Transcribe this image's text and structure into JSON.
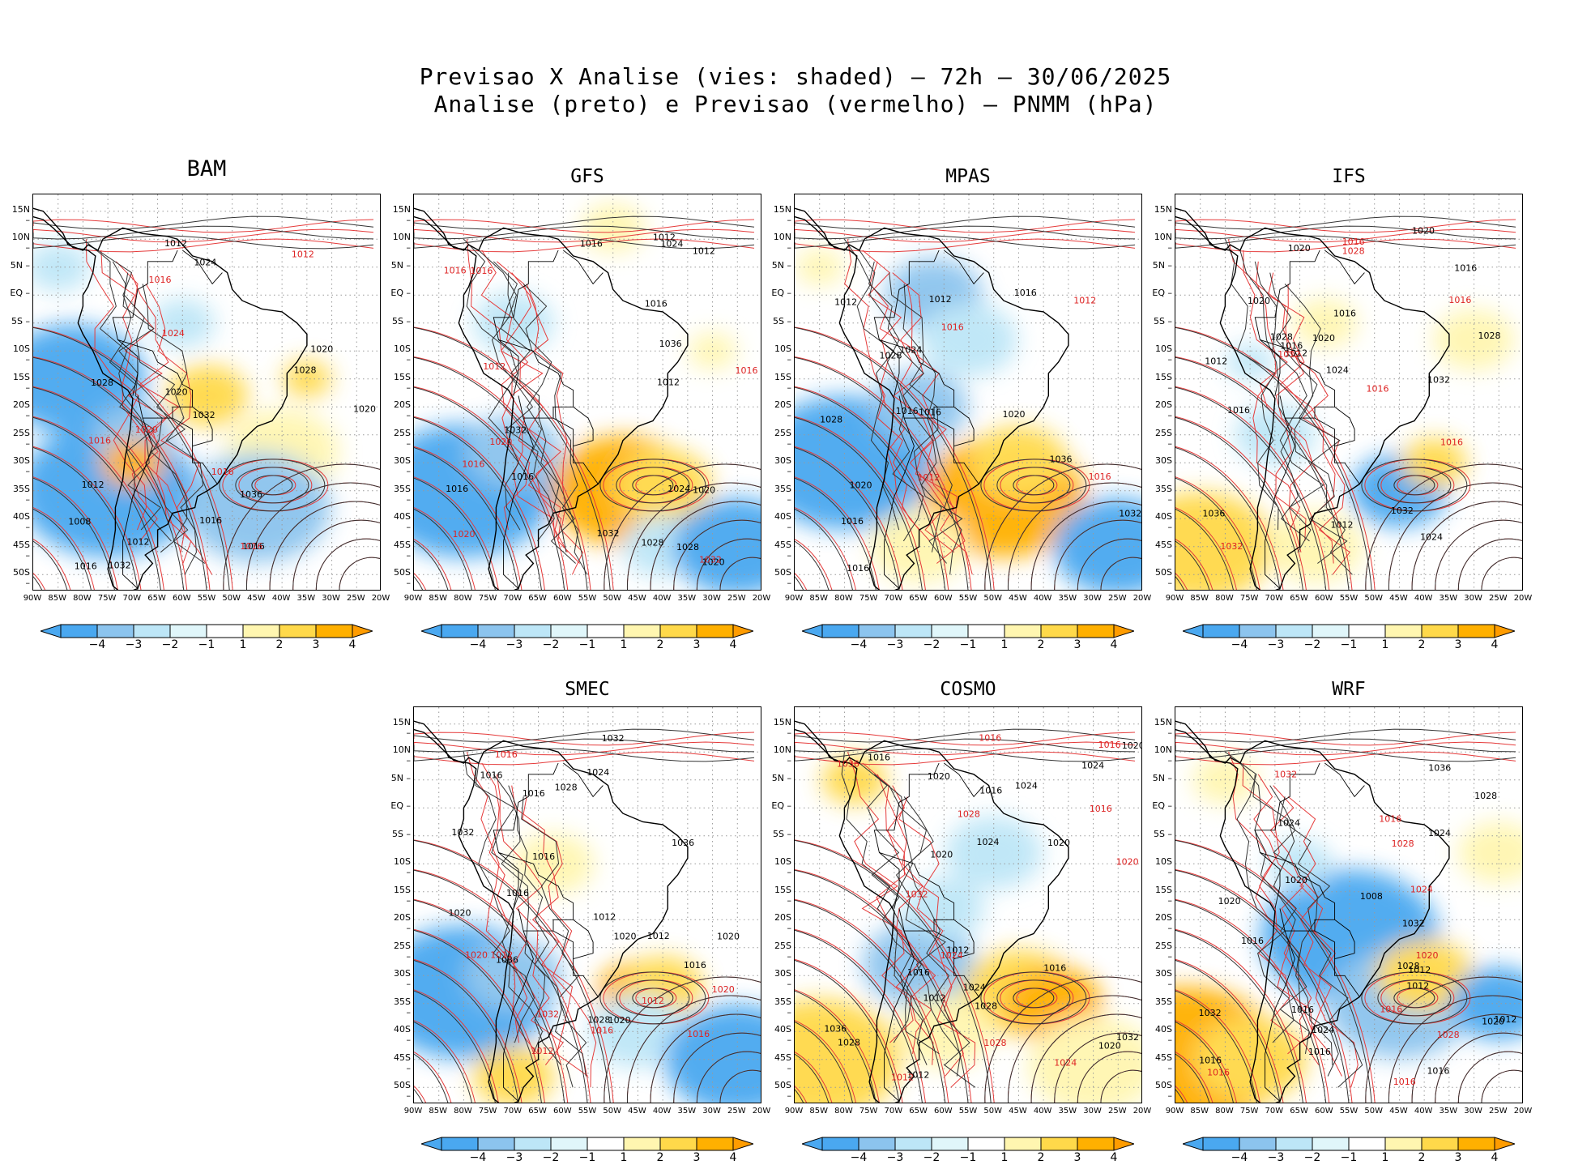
{
  "figure": {
    "title_line1": "Previsao X Analise (vies: shaded) — 72h — 30/06/2025",
    "title_line2": "Analise (preto) e Previsao (vermelho) — PNMM (hPa)"
  },
  "latitude_labels": [
    "15N",
    "10N",
    "5N",
    "EQ",
    "5S",
    "10S",
    "15S",
    "20S",
    "25S",
    "30S",
    "35S",
    "40S",
    "45S",
    "50S"
  ],
  "longitude_labels": [
    "90W",
    "85W",
    "80W",
    "75W",
    "70W",
    "65W",
    "60W",
    "55W",
    "50W",
    "45W",
    "40W",
    "35W",
    "30W",
    "25W",
    "20W"
  ],
  "colorbar": {
    "labels": [
      "−4",
      "−3",
      "−2",
      "−1",
      "1",
      "2",
      "3",
      "4"
    ],
    "colors": [
      "#4aa8f0",
      "#8cc4ee",
      "#bde6f7",
      "#e0f6fa",
      "#ffffff",
      "#fff6b0",
      "#ffd94a",
      "#ffb000",
      "#ff9c00"
    ]
  },
  "panels": [
    {
      "name": "BAM",
      "labels": {
        "black": [
          "1012",
          "1016",
          "1008",
          "1012",
          "1016",
          "1020",
          "1032",
          "1036",
          "1028",
          "1016",
          "1020",
          "1012",
          "1020",
          "1032",
          "1028",
          "1024"
        ],
        "red": [
          "1016",
          "1012",
          "1016",
          "1020",
          "1024",
          "1016",
          "1016"
        ]
      }
    },
    {
      "name": "GFS",
      "labels": {
        "black": [
          "1016",
          "1012",
          "1012",
          "1012",
          "1020",
          "1016",
          "1024",
          "1016",
          "1032",
          "1036",
          "1028",
          "1020",
          "1016",
          "1024",
          "1032",
          "1028"
        ],
        "red": [
          "1016",
          "1016",
          "1012",
          "1016",
          "1020",
          "1032",
          "1016",
          "1020"
        ]
      }
    },
    {
      "name": "MPAS",
      "labels": {
        "black": [
          "1016",
          "1012",
          "1012",
          "1016",
          "1020",
          "1016",
          "1028",
          "1036",
          "1024",
          "1032",
          "1028",
          "1016",
          "1020",
          "1016"
        ],
        "red": [
          "1012",
          "1016",
          "1012",
          "1016"
        ]
      }
    },
    {
      "name": "IFS",
      "labels": {
        "black": [
          "1016",
          "1012",
          "1012",
          "1016",
          "1020",
          "1020",
          "1020",
          "1016",
          "1036",
          "1028",
          "1032",
          "1024",
          "1032",
          "1028",
          "1012",
          "1016",
          "1020",
          "1024"
        ],
        "red": [
          "1012",
          "1016",
          "1016",
          "1016",
          "1028",
          "1016",
          "1032"
        ]
      }
    },
    {
      "name": "SMEC",
      "labels": {
        "black": [
          "1016",
          "1012",
          "1012",
          "1016",
          "1016",
          "1016",
          "1020",
          "1020",
          "1036",
          "1028",
          "1032",
          "1036",
          "1028",
          "1024",
          "1032",
          "1016",
          "1020",
          "1020"
        ],
        "red": [
          "1016",
          "1012",
          "1012",
          "1020",
          "1016",
          "1020",
          "1012",
          "1032",
          "1016"
        ]
      }
    },
    {
      "name": "COSMO",
      "labels": {
        "black": [
          "1012",
          "1016",
          "1012",
          "1016",
          "1020",
          "1016",
          "1024",
          "1020",
          "1028",
          "1020",
          "1024",
          "1032",
          "1036",
          "1028",
          "1024",
          "1016",
          "1012",
          "1020",
          "1020",
          "1024"
        ],
        "red": [
          "1016",
          "1012",
          "1016",
          "1024",
          "1028",
          "1032",
          "1036",
          "1028",
          "1024",
          "1016",
          "1020"
        ]
      }
    },
    {
      "name": "WRF",
      "labels": {
        "black": [
          "1016",
          "1012",
          "1016",
          "1008",
          "1012",
          "1016",
          "1016",
          "1020",
          "1024",
          "1032",
          "1028",
          "1036",
          "1032",
          "1028",
          "1024",
          "1016",
          "1020",
          "1012",
          "1020",
          "1024"
        ],
        "red": [
          "1016",
          "1016",
          "1016",
          "1020",
          "1028",
          "1032",
          "1028",
          "1016",
          "1024"
        ]
      }
    }
  ]
}
